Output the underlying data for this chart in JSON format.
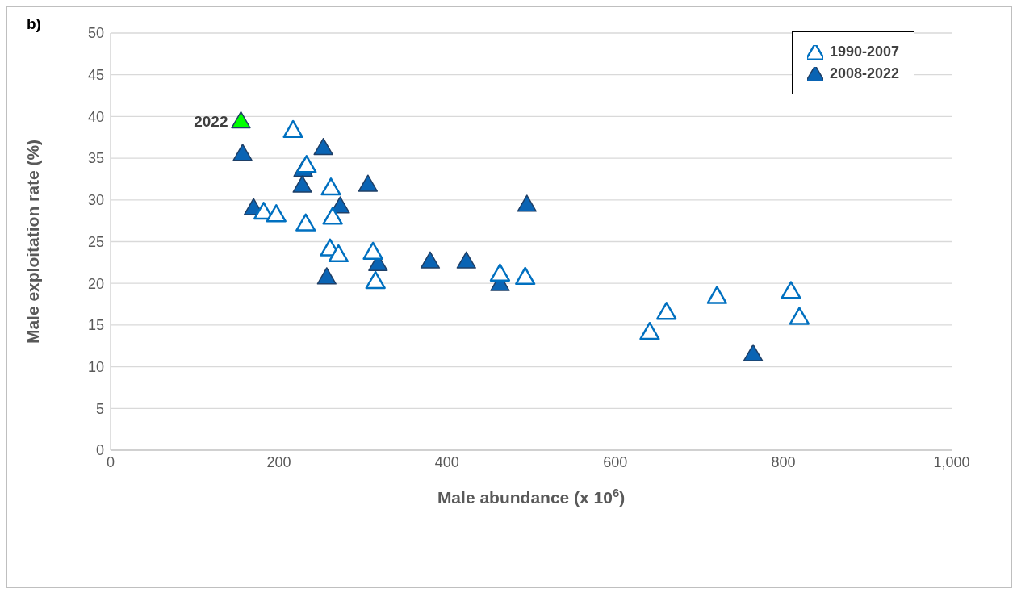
{
  "chart_data": {
    "type": "scatter",
    "title": "b)",
    "xlabel": "Male abundance (x 10$^{6}$)",
    "ylabel": "Male exploitation rate (%)",
    "series": [
      {
        "name": "1990-2007",
        "color": "#0070c0",
        "x": [
          217,
          233,
          262,
          182,
          197,
          264,
          232,
          261,
          271,
          312,
          315,
          463,
          493,
          641,
          661,
          721,
          809,
          819
        ],
        "values": [
          38.3,
          34.1,
          31.4,
          28.5,
          28.2,
          27.9,
          27.1,
          24.1,
          23.4,
          23.7,
          20.2,
          21.1,
          20.7,
          14.1,
          16.5,
          18.4,
          19.0,
          15.9
        ]
      },
      {
        "name": "2008-2022",
        "color": "#0a64b4",
        "x": [
          253,
          157,
          229,
          228,
          306,
          170,
          273,
          318,
          257,
          380,
          423,
          463,
          495,
          764
        ],
        "values": [
          36.2,
          35.5,
          33.6,
          31.7,
          31.8,
          29.0,
          29.2,
          22.3,
          20.7,
          22.6,
          22.6,
          19.9,
          29.4,
          11.5
        ]
      },
      {
        "color": "#00ff00",
        "x": [
          155
        ],
        "values": [
          39.4
        ]
      }
    ],
    "annotations": [
      {
        "text": "2022",
        "x": 155,
        "y": 39.4
      }
    ],
    "xlim": [
      0,
      1000
    ],
    "xticks": [
      0,
      200,
      400,
      600,
      800,
      {
        "value": 1000,
        "label": "1,000"
      }
    ],
    "ylim": [
      0,
      50
    ],
    "yticks": [
      0,
      5,
      10,
      15,
      20,
      25,
      30,
      35,
      40,
      45,
      50
    ],
    "grid": "y",
    "legend": "top right",
    "marker": "triangle"
  }
}
